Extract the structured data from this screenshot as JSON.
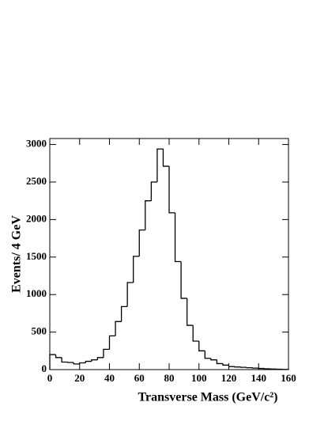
{
  "chart_data": {
    "type": "histogram",
    "x_label": "Transverse Mass (GeV/c²)",
    "y_label": "Events/ 4 GeV",
    "bins": [
      0,
      4,
      8,
      12,
      16,
      20,
      24,
      28,
      32,
      36,
      40,
      44,
      48,
      52,
      56,
      60,
      64,
      68,
      72,
      76,
      80,
      84,
      88,
      92,
      96,
      100,
      104,
      108,
      112,
      116,
      120,
      124,
      128,
      132,
      136,
      140,
      144,
      148,
      152,
      156,
      160
    ],
    "values": [
      200,
      160,
      100,
      95,
      75,
      90,
      110,
      130,
      160,
      270,
      450,
      640,
      840,
      1160,
      1510,
      1860,
      2250,
      2500,
      2940,
      2710,
      2090,
      1440,
      950,
      590,
      380,
      250,
      150,
      130,
      80,
      60,
      40,
      35,
      30,
      25,
      20,
      15,
      10,
      8,
      5,
      3
    ],
    "color": "#000000",
    "xlim": [
      0,
      160
    ],
    "xticks": [
      0,
      20,
      40,
      60,
      80,
      100,
      120,
      140,
      160
    ],
    "ylim": [
      0,
      3080
    ],
    "yticks": [
      0,
      500,
      1000,
      1500,
      2000,
      2500,
      3000
    ]
  }
}
